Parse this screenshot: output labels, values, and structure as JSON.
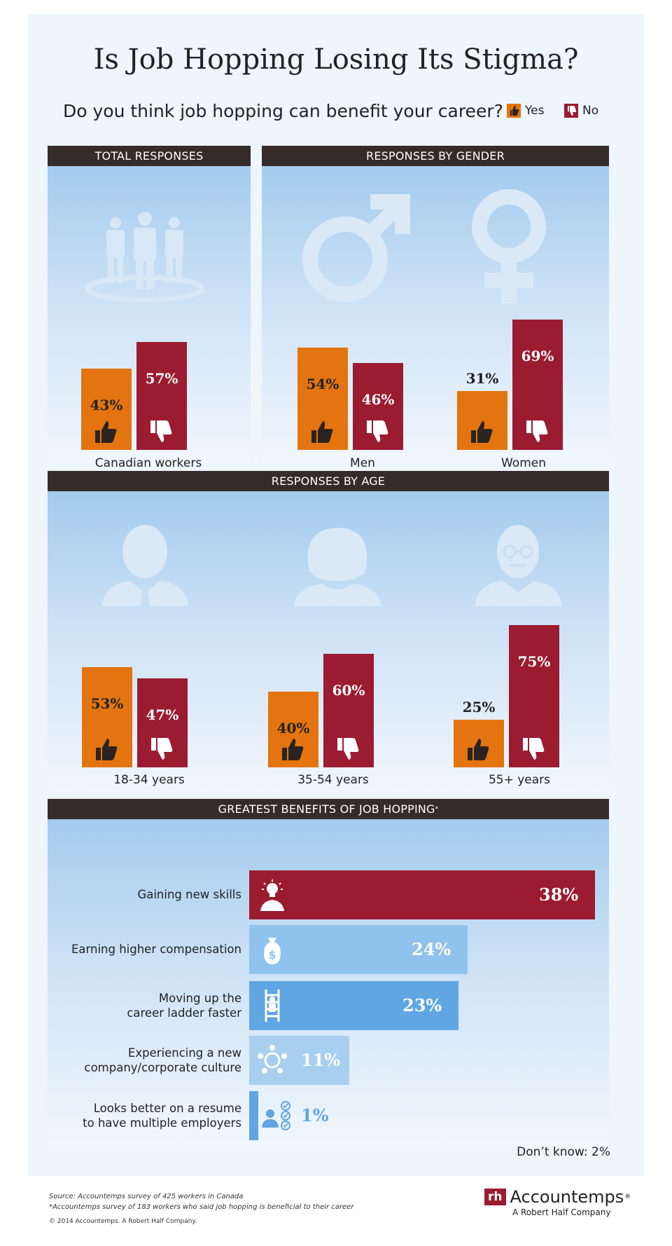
{
  "title": "Is Job Hopping Losing Its Stigma?",
  "question": "Do you think job hopping can benefit your career?",
  "legend": {
    "yes": "Yes",
    "no": "No"
  },
  "colors": {
    "yes": "#e3740f",
    "no": "#9b1b30",
    "header": "#352b29"
  },
  "sections": {
    "total": "TOTAL RESPONSES",
    "gender": "RESPONSES BY GENDER",
    "age": "RESPONSES BY AGE",
    "benefits": "GREATEST BENEFITS OF JOB HOPPING",
    "benefits_mark": "*"
  },
  "chart_data": [
    {
      "type": "bar",
      "title": "TOTAL RESPONSES",
      "categories": [
        "Canadian workers"
      ],
      "series": [
        {
          "name": "Yes",
          "values": [
            43
          ]
        },
        {
          "name": "No",
          "values": [
            57
          ]
        }
      ],
      "labels": {
        "yes": [
          "43%"
        ],
        "no": [
          "57%"
        ]
      }
    },
    {
      "type": "bar",
      "title": "RESPONSES BY GENDER",
      "categories": [
        "Men",
        "Women"
      ],
      "series": [
        {
          "name": "Yes",
          "values": [
            54,
            31
          ]
        },
        {
          "name": "No",
          "values": [
            46,
            69
          ]
        }
      ],
      "labels": {
        "yes": [
          "54%",
          "31%"
        ],
        "no": [
          "46%",
          "69%"
        ]
      }
    },
    {
      "type": "bar",
      "title": "RESPONSES BY AGE",
      "categories": [
        "18-34 years",
        "35-54 years",
        "55+ years"
      ],
      "series": [
        {
          "name": "Yes",
          "values": [
            53,
            40,
            25
          ]
        },
        {
          "name": "No",
          "values": [
            47,
            60,
            75
          ]
        }
      ],
      "labels": {
        "yes": [
          "53%",
          "40%",
          "25%"
        ],
        "no": [
          "47%",
          "60%",
          "75%"
        ]
      }
    },
    {
      "type": "bar",
      "title": "GREATEST BENEFITS OF JOB HOPPING*",
      "categories": [
        "Gaining new skills",
        "Earning higher compensation",
        "Moving up the career ladder faster",
        "Experiencing a new company/corporate culture",
        "Looks better on a resume to have multiple employers"
      ],
      "values": [
        38,
        24,
        23,
        11,
        1
      ],
      "labels": [
        "38%",
        "24%",
        "23%",
        "11%",
        "1%"
      ],
      "label_lines": [
        [
          "Gaining new skills"
        ],
        [
          "Earning higher compensation"
        ],
        [
          "Moving up the",
          "career ladder faster"
        ],
        [
          "Experiencing a new",
          "company/corporate culture"
        ],
        [
          "Looks better on a resume",
          "to have multiple employers"
        ]
      ],
      "bar_colors": [
        "#9b1b30",
        "#8fc2ec",
        "#5fa6e2",
        "#a8cff0",
        "#5fa6e2"
      ],
      "icons": [
        "lightbulb-person-icon",
        "money-bag-icon",
        "ladder-climber-icon",
        "people-circle-icon",
        "checklist-person-icon"
      ]
    }
  ],
  "dont_know": "Don’t know: 2%",
  "source": {
    "line1": "Source: Accountemps survey of 425 workers in Canada",
    "line2": "*Accountemps survey of 183 workers who said job hopping is beneficial to their career",
    "line3": "© 2014 Accountemps. A Robert Half Company."
  },
  "brand": {
    "logo_letters": "rh",
    "name": "Accountemps",
    "reg": "®",
    "tagline": "A Robert Half Company"
  }
}
